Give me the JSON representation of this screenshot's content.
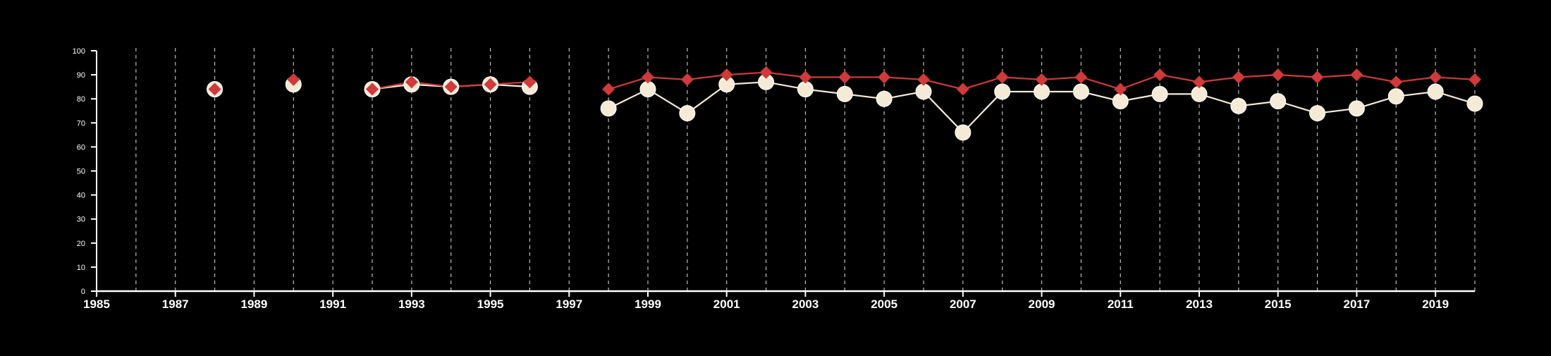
{
  "chart_data": {
    "type": "line",
    "title": "",
    "xlabel": "",
    "ylabel": "",
    "xlim": [
      1985,
      2020
    ],
    "ylim": [
      0,
      100
    ],
    "x_ticks": [
      1985,
      1987,
      1989,
      1991,
      1993,
      1995,
      1997,
      1999,
      2001,
      2003,
      2005,
      2007,
      2009,
      2011,
      2013,
      2015,
      2017,
      2019
    ],
    "x_gridlines": [
      1986,
      1987,
      1988,
      1989,
      1990,
      1991,
      1992,
      1993,
      1994,
      1995,
      1996,
      1997,
      1998,
      1999,
      2000,
      2001,
      2002,
      2003,
      2004,
      2005,
      2006,
      2007,
      2008,
      2009,
      2010,
      2011,
      2012,
      2013,
      2014,
      2015,
      2016,
      2017,
      2018,
      2019,
      2020
    ],
    "y_ticks": [
      0,
      10,
      20,
      30,
      40,
      50,
      60,
      70,
      80,
      90,
      100
    ],
    "grid": "vertical dashed",
    "legend": "none",
    "series": [
      {
        "color": "#f5ead6",
        "marker": "circle",
        "points": [
          [
            1988,
            84
          ],
          [
            1990,
            86
          ],
          [
            1992,
            84
          ],
          [
            1993,
            86
          ],
          [
            1994,
            85
          ],
          [
            1995,
            86
          ],
          [
            1996,
            85
          ],
          [
            1998,
            76
          ],
          [
            1999,
            84
          ],
          [
            2000,
            74
          ],
          [
            2001,
            86
          ],
          [
            2002,
            87
          ],
          [
            2003,
            84
          ],
          [
            2004,
            82
          ],
          [
            2005,
            80
          ],
          [
            2006,
            83
          ],
          [
            2007,
            66
          ],
          [
            2008,
            83
          ],
          [
            2009,
            83
          ],
          [
            2010,
            83
          ],
          [
            2011,
            79
          ],
          [
            2012,
            82
          ],
          [
            2013,
            82
          ],
          [
            2014,
            77
          ],
          [
            2015,
            79
          ],
          [
            2016,
            74
          ],
          [
            2017,
            76
          ],
          [
            2018,
            81
          ],
          [
            2019,
            83
          ],
          [
            2020,
            78
          ]
        ]
      },
      {
        "color": "#d03a3a",
        "marker": "diamond",
        "points": [
          [
            1988,
            84
          ],
          [
            1990,
            88
          ],
          [
            1992,
            84
          ],
          [
            1993,
            87
          ],
          [
            1994,
            85
          ],
          [
            1995,
            86
          ],
          [
            1996,
            87
          ],
          [
            1998,
            84
          ],
          [
            1999,
            89
          ],
          [
            2000,
            88
          ],
          [
            2001,
            90
          ],
          [
            2002,
            91
          ],
          [
            2003,
            89
          ],
          [
            2004,
            89
          ],
          [
            2005,
            89
          ],
          [
            2006,
            88
          ],
          [
            2007,
            84
          ],
          [
            2008,
            89
          ],
          [
            2009,
            88
          ],
          [
            2010,
            89
          ],
          [
            2011,
            84
          ],
          [
            2012,
            90
          ],
          [
            2013,
            87
          ],
          [
            2014,
            89
          ],
          [
            2015,
            90
          ],
          [
            2016,
            89
          ],
          [
            2017,
            90
          ],
          [
            2018,
            87
          ],
          [
            2019,
            89
          ],
          [
            2020,
            88
          ]
        ]
      }
    ]
  }
}
